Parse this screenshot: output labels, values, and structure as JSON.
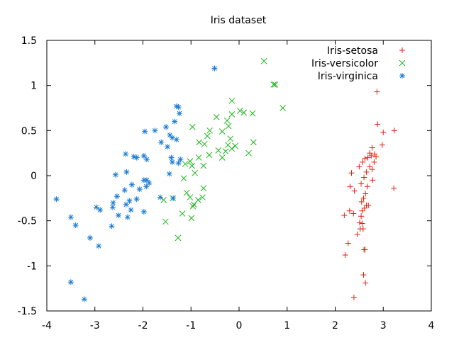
{
  "chart_data": {
    "type": "scatter",
    "title": "Iris dataset",
    "xlabel": "",
    "ylabel": "",
    "xlim": [
      -4,
      4
    ],
    "ylim": [
      -1.5,
      1.5
    ],
    "xticks": [
      -4,
      -3,
      -2,
      -1,
      0,
      1,
      2,
      3,
      4
    ],
    "yticks": [
      -1.5,
      -1,
      -0.5,
      0,
      0.5,
      1,
      1.5
    ],
    "xtick_labels": [
      "-4",
      "-3",
      "-2",
      "-1",
      "0",
      "1",
      "2",
      "3",
      "4"
    ],
    "ytick_labels": [
      "-1.5",
      "-1",
      "-0.5",
      "0",
      "0.5",
      "1",
      "1.5"
    ],
    "grid": false,
    "legend_position": "top-right",
    "series": [
      {
        "name": "Iris-setosa",
        "marker": "plus",
        "color": "#e51e10",
        "points": [
          [
            2.87,
            0.93
          ],
          [
            2.88,
            0.57
          ],
          [
            3.0,
            0.48
          ],
          [
            3.23,
            0.5
          ],
          [
            2.98,
            0.34
          ],
          [
            2.77,
            0.31
          ],
          [
            2.72,
            0.25
          ],
          [
            2.82,
            0.24
          ],
          [
            2.75,
            0.22
          ],
          [
            2.68,
            0.2
          ],
          [
            2.62,
            0.19
          ],
          [
            2.85,
            0.21
          ],
          [
            2.57,
            0.15
          ],
          [
            2.81,
            0.15
          ],
          [
            2.72,
            0.1
          ],
          [
            2.5,
            0.1
          ],
          [
            2.77,
            0.07
          ],
          [
            2.65,
            0.04
          ],
          [
            2.34,
            0.03
          ],
          [
            2.6,
            -0.02
          ],
          [
            2.78,
            -0.05
          ],
          [
            2.54,
            -0.09
          ],
          [
            2.31,
            -0.12
          ],
          [
            2.67,
            -0.12
          ],
          [
            2.4,
            -0.17
          ],
          [
            3.22,
            -0.14
          ],
          [
            2.63,
            -0.2
          ],
          [
            2.59,
            -0.25
          ],
          [
            2.55,
            -0.29
          ],
          [
            2.69,
            -0.33
          ],
          [
            2.65,
            -0.33
          ],
          [
            2.61,
            -0.36
          ],
          [
            2.56,
            -0.39
          ],
          [
            2.3,
            -0.39
          ],
          [
            2.38,
            -0.42
          ],
          [
            2.19,
            -0.44
          ],
          [
            2.54,
            -0.45
          ],
          [
            2.51,
            -0.52
          ],
          [
            2.56,
            -0.53
          ],
          [
            2.52,
            -0.59
          ],
          [
            2.58,
            -0.59
          ],
          [
            2.46,
            -0.65
          ],
          [
            2.27,
            -0.75
          ],
          [
            2.6,
            -0.82
          ],
          [
            2.62,
            -0.82
          ],
          [
            2.21,
            -0.88
          ],
          [
            2.59,
            -1.1
          ],
          [
            2.63,
            -1.19
          ],
          [
            2.39,
            -1.35
          ]
        ]
      },
      {
        "name": "Iris-versicolor",
        "marker": "cross",
        "color": "#1cb51c",
        "points": [
          [
            0.52,
            1.27
          ],
          [
            0.72,
            1.01
          ],
          [
            0.75,
            1.01
          ],
          [
            -0.15,
            0.83
          ],
          [
            0.91,
            0.75
          ],
          [
            0.02,
            0.72
          ],
          [
            0.1,
            0.7
          ],
          [
            0.28,
            0.69
          ],
          [
            -0.15,
            0.68
          ],
          [
            -0.47,
            0.65
          ],
          [
            -0.25,
            0.61
          ],
          [
            -0.97,
            0.54
          ],
          [
            -0.61,
            0.5
          ],
          [
            -0.22,
            0.55
          ],
          [
            -0.35,
            0.49
          ],
          [
            -0.66,
            0.44
          ],
          [
            -0.18,
            0.41
          ],
          [
            -0.83,
            0.37
          ],
          [
            0.3,
            0.37
          ],
          [
            -0.72,
            0.35
          ],
          [
            -0.23,
            0.34
          ],
          [
            -0.08,
            0.33
          ],
          [
            -0.15,
            0.3
          ],
          [
            -0.43,
            0.28
          ],
          [
            -0.28,
            0.27
          ],
          [
            0.2,
            0.25
          ],
          [
            -0.62,
            0.23
          ],
          [
            -0.35,
            0.2
          ],
          [
            -0.84,
            0.2
          ],
          [
            -1.02,
            0.16
          ],
          [
            -1.12,
            0.13
          ],
          [
            -0.98,
            0.11
          ],
          [
            -0.74,
            0.11
          ],
          [
            -0.92,
            0.03
          ],
          [
            -1.15,
            -0.03
          ],
          [
            -0.74,
            -0.14
          ],
          [
            -1.09,
            -0.19
          ],
          [
            -0.76,
            -0.24
          ],
          [
            -1.02,
            -0.24
          ],
          [
            -1.38,
            -0.25
          ],
          [
            -0.85,
            -0.27
          ],
          [
            -1.57,
            -0.27
          ],
          [
            -0.94,
            -0.32
          ],
          [
            -0.96,
            -0.34
          ],
          [
            -1.18,
            -0.42
          ],
          [
            -0.99,
            -0.47
          ],
          [
            -1.53,
            -0.51
          ],
          [
            -1.27,
            -0.69
          ]
        ]
      },
      {
        "name": "Iris-virginica",
        "marker": "star",
        "color": "#1a7bd2",
        "points": [
          [
            -0.51,
            1.19
          ],
          [
            -1.3,
            0.77
          ],
          [
            -1.26,
            0.76
          ],
          [
            -1.24,
            0.69
          ],
          [
            -1.34,
            0.6
          ],
          [
            -1.52,
            0.54
          ],
          [
            -1.75,
            0.5
          ],
          [
            -1.96,
            0.49
          ],
          [
            -1.44,
            0.45
          ],
          [
            -1.39,
            0.42
          ],
          [
            -1.3,
            0.4
          ],
          [
            -1.62,
            0.37
          ],
          [
            -1.49,
            0.32
          ],
          [
            -2.36,
            0.24
          ],
          [
            -1.98,
            0.22
          ],
          [
            -2.19,
            0.21
          ],
          [
            -1.41,
            0.2
          ],
          [
            -2.13,
            0.2
          ],
          [
            -1.92,
            0.18
          ],
          [
            -1.22,
            0.18
          ],
          [
            -1.39,
            0.15
          ],
          [
            -1.26,
            0.14
          ],
          [
            -2.57,
            0.01
          ],
          [
            -2.34,
            0.04
          ],
          [
            -1.45,
            0.02
          ],
          [
            -1.98,
            -0.05
          ],
          [
            -1.92,
            -0.05
          ],
          [
            -1.87,
            -0.08
          ],
          [
            -2.23,
            -0.1
          ],
          [
            -1.93,
            -0.12
          ],
          [
            -2.07,
            -0.15
          ],
          [
            -2.38,
            -0.16
          ],
          [
            -2.54,
            -0.23
          ],
          [
            -1.64,
            -0.24
          ],
          [
            -1.37,
            -0.25
          ],
          [
            -3.8,
            -0.26
          ],
          [
            -2.13,
            -0.26
          ],
          [
            -2.28,
            -0.28
          ],
          [
            -2.62,
            -0.3
          ],
          [
            -2.35,
            -0.32
          ],
          [
            -2.63,
            -0.35
          ],
          [
            -2.97,
            -0.35
          ],
          [
            -2.89,
            -0.38
          ],
          [
            -2.25,
            -0.38
          ],
          [
            -1.98,
            -0.4
          ],
          [
            -2.51,
            -0.44
          ],
          [
            -3.5,
            -0.46
          ],
          [
            -3.4,
            -0.55
          ],
          [
            -2.32,
            -0.46
          ],
          [
            -2.65,
            -0.56
          ],
          [
            -3.1,
            -0.69
          ],
          [
            -2.92,
            -0.78
          ],
          [
            -3.5,
            -1.18
          ],
          [
            -3.22,
            -1.37
          ]
        ]
      }
    ]
  }
}
